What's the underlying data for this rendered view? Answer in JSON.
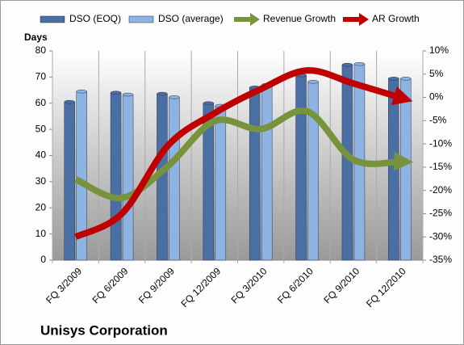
{
  "chart_data": {
    "type": "bar-line",
    "title": "Unisys Corporation",
    "ylabel": "Days",
    "categories": [
      "FQ 3/2009",
      "FQ 6/2009",
      "FQ 9/2009",
      "FQ 12/2009",
      "FQ 3/2010",
      "FQ 6/2010",
      "FQ 9/2010",
      "FQ 12/2010"
    ],
    "series": [
      {
        "name": "DSO (EOQ)",
        "type": "bar",
        "color": "#4a6fa5",
        "values": [
          60.5,
          64,
          63.6,
          60,
          66,
          70.7,
          74.7,
          69.4
        ]
      },
      {
        "name": "DSO (average)",
        "type": "bar",
        "color": "#8db3e2",
        "values": [
          64.5,
          63.3,
          62.3,
          59,
          67,
          68.2,
          75,
          69.4
        ]
      },
      {
        "name": "Revenue Growth",
        "type": "line",
        "axis": "y2",
        "color": "#77933c",
        "values": [
          -17.6,
          -21.6,
          -14.7,
          -5.1,
          -6.8,
          -3,
          -13.4,
          -13.8
        ]
      },
      {
        "name": "AR Growth",
        "type": "line",
        "axis": "y2",
        "color": "#c00000",
        "values": [
          -30,
          -25,
          -10.3,
          -3.4,
          1.8,
          5.8,
          3,
          0
        ]
      }
    ],
    "ylim": [
      0,
      80
    ],
    "yticks": [
      0,
      10,
      20,
      30,
      40,
      50,
      60,
      70,
      80
    ],
    "y2lim": [
      -35,
      10
    ],
    "y2ticks": [
      {
        "value": -35,
        "label": "-35%"
      },
      {
        "value": -30,
        "label": "-30%"
      },
      {
        "value": -25,
        "label": "-25%"
      },
      {
        "value": -20,
        "label": "-20%"
      },
      {
        "value": -15,
        "label": "-15%"
      },
      {
        "value": -10,
        "label": "-10%"
      },
      {
        "value": -5,
        "label": "-5%"
      },
      {
        "value": 0,
        "label": "0%"
      },
      {
        "value": 5,
        "label": "5%"
      },
      {
        "value": 10,
        "label": "10%"
      }
    ]
  }
}
